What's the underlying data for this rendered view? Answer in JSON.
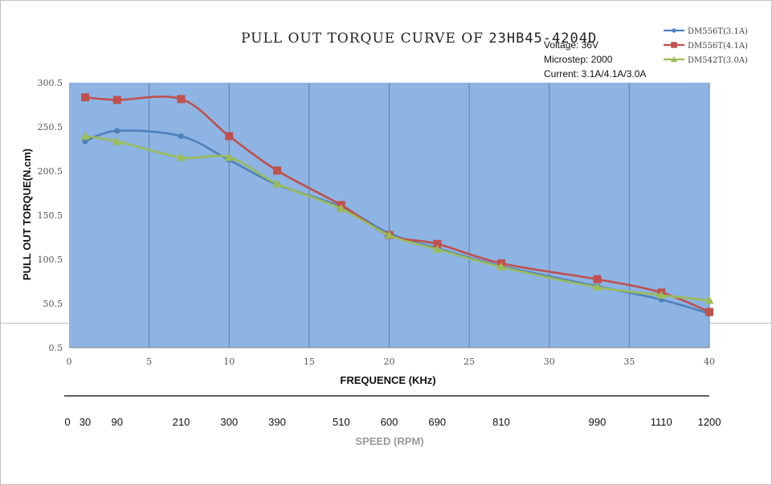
{
  "chart_data": {
    "type": "line",
    "title": "PULL OUT TORQUE CURVE OF",
    "title_model": "23HB45-4204D",
    "conditions": [
      "Voltage: 36V",
      "Microstep: 2000",
      "Current: 3.1A/4.1A/3.0A"
    ],
    "xlabel": "FREQUENCE (KHz)",
    "ylabel": "PULL OUT TORQUE(N.cm)",
    "xlim": [
      0,
      40
    ],
    "ylim": [
      0.5,
      300.5
    ],
    "x_ticks": [
      "0",
      "5",
      "10",
      "15",
      "20",
      "25",
      "30",
      "35",
      "40"
    ],
    "y_ticks": [
      "0.5",
      "50.5",
      "100.5",
      "150.5",
      "200.5",
      "250.5",
      "300.5"
    ],
    "plot_bg": "#8db4e2",
    "grid": "vertical",
    "legend_position": "top-right",
    "series": [
      {
        "name": "DM556T(3.1A)",
        "color": "#4f81bd",
        "marker": "circle",
        "x": [
          1,
          3,
          7,
          10,
          13,
          17,
          20,
          23,
          27,
          33,
          37,
          40
        ],
        "y": [
          234,
          246,
          240,
          213,
          185,
          160,
          130,
          113,
          93,
          70,
          55,
          39
        ]
      },
      {
        "name": "DM556T(4.1A)",
        "color": "#c0504d",
        "marker": "square",
        "x": [
          1,
          3,
          7,
          10,
          13,
          17,
          20,
          23,
          27,
          33,
          37,
          40
        ],
        "y": [
          284,
          281,
          282,
          240,
          201,
          162,
          128,
          118,
          96,
          78,
          63,
          41
        ]
      },
      {
        "name": "DM542T(3.0A)",
        "color": "#9bbb59",
        "marker": "triangle",
        "x": [
          1,
          3,
          7,
          10,
          13,
          17,
          20,
          23,
          27,
          33,
          37,
          40
        ],
        "y": [
          240,
          234,
          216,
          216,
          186,
          158,
          128,
          112,
          92,
          69,
          60,
          54
        ]
      }
    ],
    "secondary_axis": {
      "title": "SPEED (RPM)",
      "ticks": [
        {
          "label": "0",
          "khz": 0
        },
        {
          "label": "30",
          "khz": 1
        },
        {
          "label": "90",
          "khz": 3
        },
        {
          "label": "210",
          "khz": 7
        },
        {
          "label": "300",
          "khz": 10
        },
        {
          "label": "390",
          "khz": 13
        },
        {
          "label": "510",
          "khz": 17
        },
        {
          "label": "600",
          "khz": 20
        },
        {
          "label": "690",
          "khz": 23
        },
        {
          "label": "810",
          "khz": 27
        },
        {
          "label": "990",
          "khz": 33
        },
        {
          "label": "1110",
          "khz": 37
        },
        {
          "label": "1200",
          "khz": 40
        }
      ]
    }
  }
}
